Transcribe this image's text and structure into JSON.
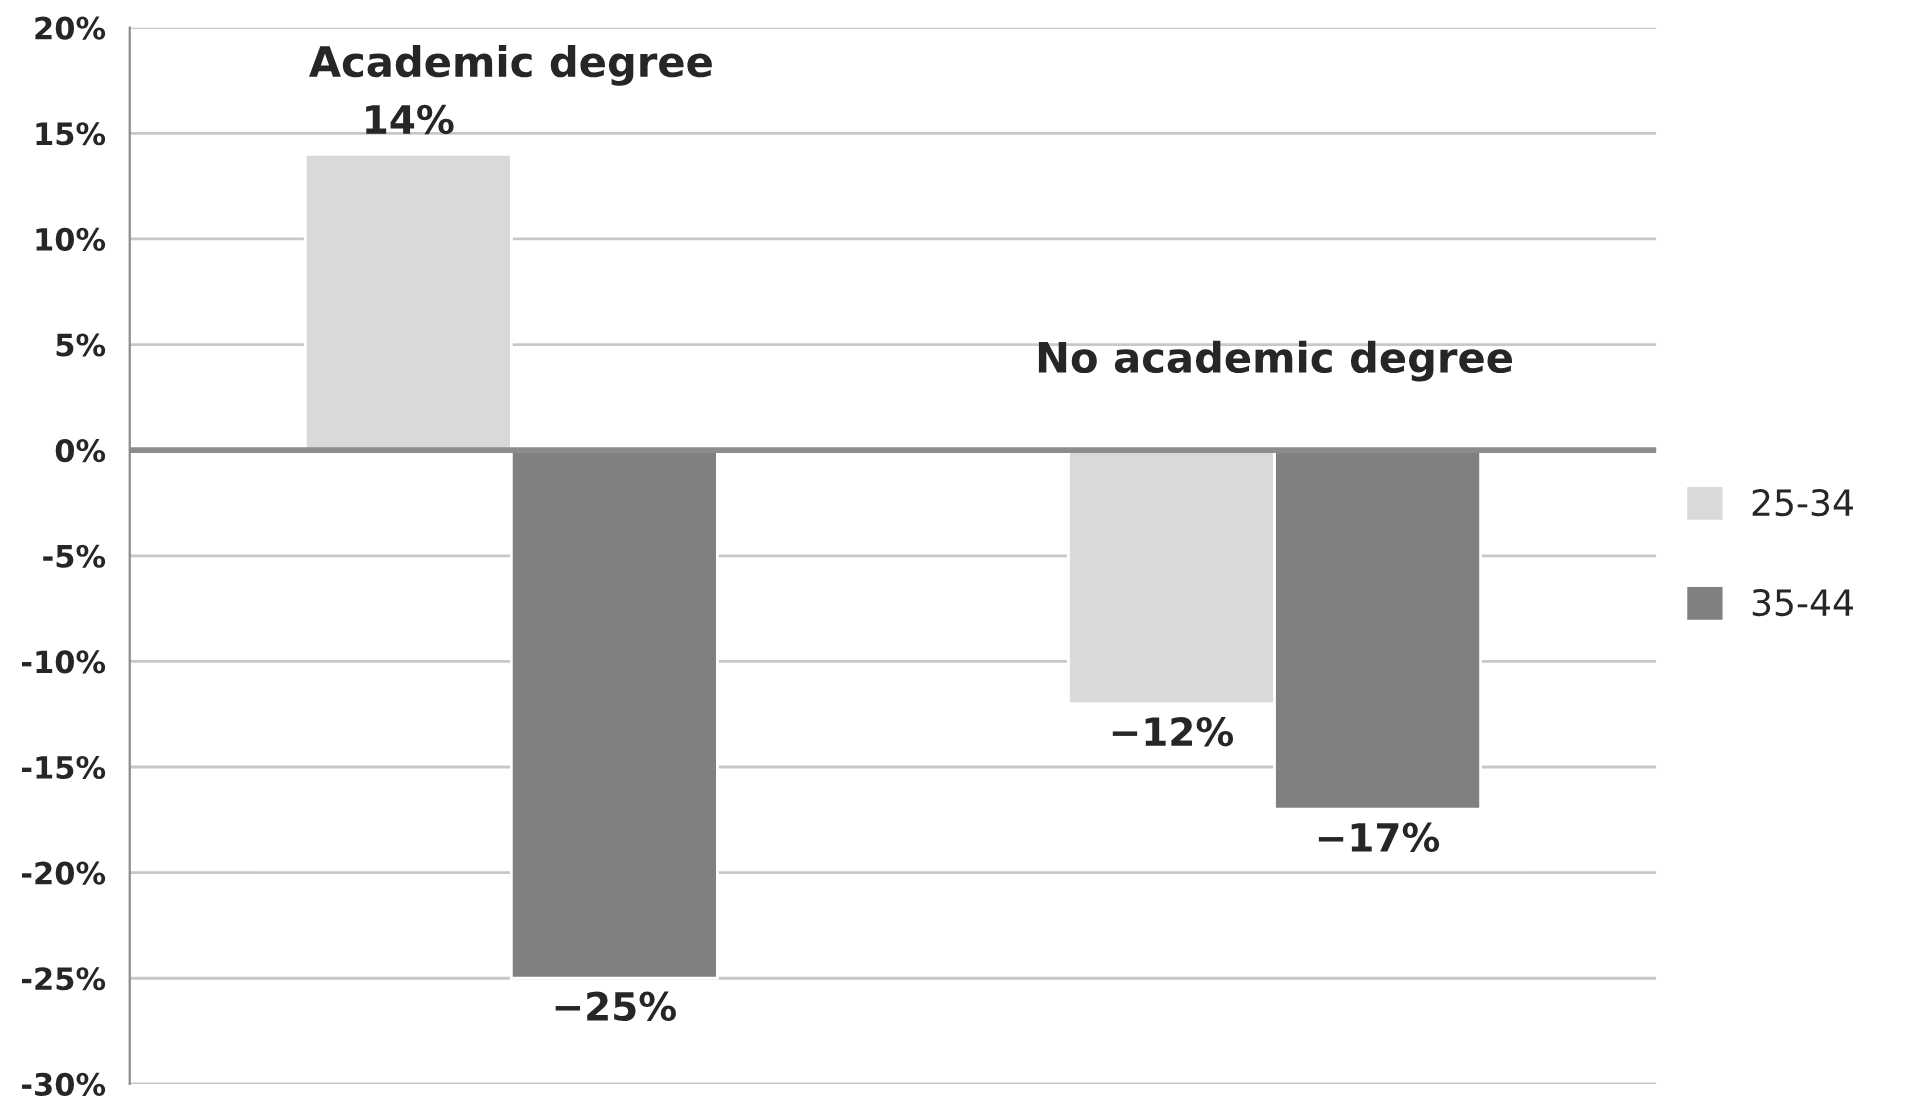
{
  "chart_data": {
    "type": "bar",
    "categories": [
      "Academic degree",
      "No academic degree"
    ],
    "series": [
      {
        "name": "25-34",
        "color": "#d9d9d9",
        "values": [
          14,
          -12
        ],
        "value_labels": [
          "14%",
          "−12%"
        ]
      },
      {
        "name": "35-44",
        "color": "#808080",
        "values": [
          -25,
          -17
        ],
        "value_labels": [
          "−25%",
          "−17%"
        ]
      }
    ],
    "ylim": [
      -30,
      20
    ],
    "yticks": [
      {
        "value": -30,
        "label": "-30%"
      },
      {
        "value": -25,
        "label": "-25%"
      },
      {
        "value": -20,
        "label": "-20%"
      },
      {
        "value": -15,
        "label": "-15%"
      },
      {
        "value": -10,
        "label": "-10%"
      },
      {
        "value": -5,
        "label": "-5%"
      },
      {
        "value": 0,
        "label": "0%"
      },
      {
        "value": 5,
        "label": "5%"
      },
      {
        "value": 10,
        "label": "10%"
      },
      {
        "value": 15,
        "label": "15%"
      },
      {
        "value": 20,
        "label": "20%"
      }
    ],
    "grid": "y",
    "legend": "right"
  }
}
